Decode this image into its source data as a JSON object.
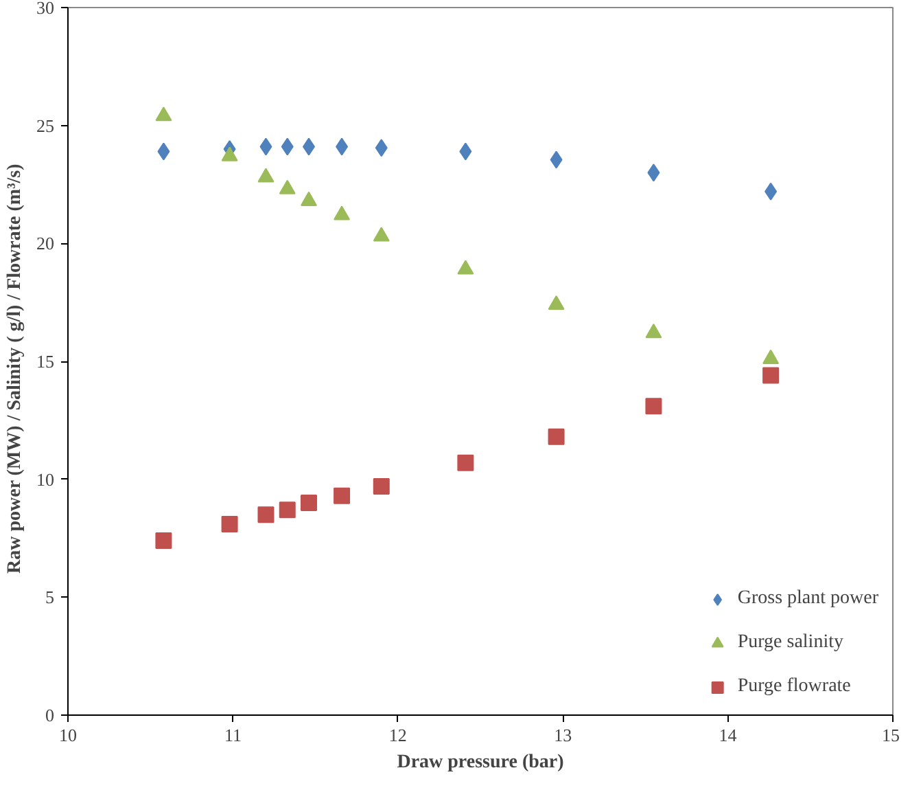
{
  "chart_data": {
    "type": "scatter",
    "xlabel": "Draw pressure (bar)",
    "ylabel": "Raw power (MW)  / Salinity ( g/l)  /  Flowrate (m³/s)",
    "x": [
      10.58,
      10.98,
      11.2,
      11.33,
      11.46,
      11.66,
      11.9,
      12.41,
      12.96,
      13.55,
      14.26
    ],
    "series": [
      {
        "name": "Gross plant power",
        "color": "#4f81bd",
        "marker": "diamond",
        "values": [
          23.9,
          24.0,
          24.1,
          24.1,
          24.1,
          24.1,
          24.05,
          23.9,
          23.55,
          23.0,
          22.2
        ]
      },
      {
        "name": "Purge salinity",
        "color": "#9bbb59",
        "marker": "triangle",
        "values": [
          25.4,
          23.7,
          22.8,
          22.3,
          21.8,
          21.2,
          20.3,
          18.9,
          17.4,
          16.2,
          15.1
        ]
      },
      {
        "name": "Purge flowrate",
        "color": "#c0504d",
        "marker": "square",
        "values": [
          7.4,
          8.1,
          8.5,
          8.7,
          9.0,
          9.3,
          9.7,
          10.7,
          11.8,
          13.1,
          14.4
        ]
      }
    ],
    "xlim": [
      10,
      15
    ],
    "xticks": [
      10,
      11,
      12,
      13,
      14,
      15
    ],
    "ylim": [
      0,
      30
    ],
    "yticks": [
      0,
      5,
      10,
      15,
      20,
      25,
      30
    ],
    "grid": false,
    "legend": "bottom right"
  }
}
